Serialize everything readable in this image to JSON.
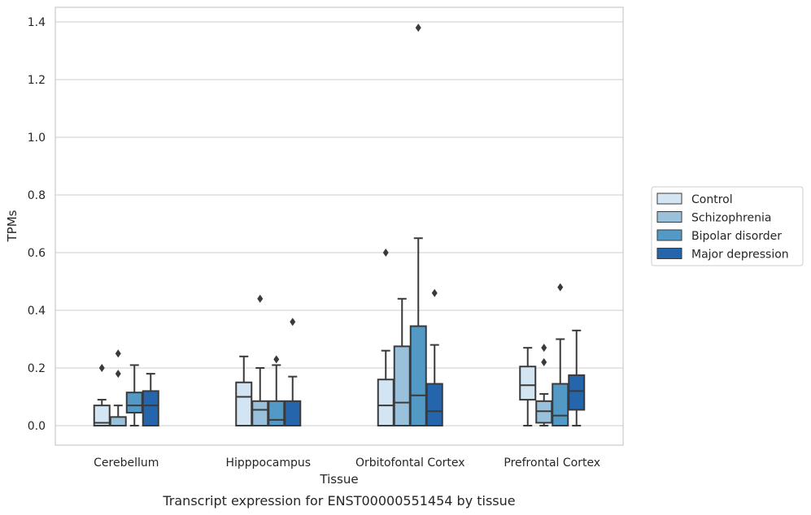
{
  "chart_data": {
    "type": "box",
    "title": "",
    "caption": "Transcript expression for ENST00000551454 by tissue",
    "xlabel": "Tissue",
    "ylabel": "TPMs",
    "ylim": [
      -0.065,
      1.45
    ],
    "yticks": [
      0.0,
      0.2,
      0.4,
      0.6,
      0.8,
      1.0,
      1.2,
      1.4
    ],
    "ytick_labels": [
      "0.0",
      "0.2",
      "0.4",
      "0.6",
      "0.8",
      "1.0",
      "1.2",
      "1.4"
    ],
    "grid": "horizontal",
    "legend_position": "right",
    "categories": [
      "Cerebellum",
      "Hipppocampus",
      "Orbitofontal Cortex",
      "Prefrontal Cortex"
    ],
    "series": [
      {
        "name": "Control",
        "color": "#d3e4f3",
        "boxes": [
          {
            "whislo": 0.0,
            "q1": 0.0,
            "med": 0.01,
            "q3": 0.07,
            "whishi": 0.09,
            "fliers": [
              0.2
            ]
          },
          {
            "whislo": 0.0,
            "q1": 0.0,
            "med": 0.1,
            "q3": 0.15,
            "whishi": 0.24,
            "fliers": []
          },
          {
            "whislo": 0.0,
            "q1": 0.0,
            "med": 0.07,
            "q3": 0.16,
            "whishi": 0.26,
            "fliers": [
              0.6
            ]
          },
          {
            "whislo": 0.0,
            "q1": 0.09,
            "med": 0.14,
            "q3": 0.205,
            "whishi": 0.27,
            "fliers": []
          }
        ]
      },
      {
        "name": "Schizophrenia",
        "color": "#9ac1db",
        "boxes": [
          {
            "whislo": 0.0,
            "q1": 0.0,
            "med": 0.0,
            "q3": 0.03,
            "whishi": 0.07,
            "fliers": [
              0.18,
              0.25
            ]
          },
          {
            "whislo": 0.0,
            "q1": 0.0,
            "med": 0.055,
            "q3": 0.085,
            "whishi": 0.2,
            "fliers": [
              0.44
            ]
          },
          {
            "whislo": 0.0,
            "q1": 0.0,
            "med": 0.08,
            "q3": 0.275,
            "whishi": 0.44,
            "fliers": []
          },
          {
            "whislo": 0.0,
            "q1": 0.01,
            "med": 0.05,
            "q3": 0.085,
            "whishi": 0.11,
            "fliers": [
              0.22,
              0.27
            ]
          }
        ]
      },
      {
        "name": "Bipolar disorder",
        "color": "#5399c6",
        "boxes": [
          {
            "whislo": 0.0,
            "q1": 0.045,
            "med": 0.07,
            "q3": 0.115,
            "whishi": 0.21,
            "fliers": []
          },
          {
            "whislo": 0.0,
            "q1": 0.0,
            "med": 0.02,
            "q3": 0.085,
            "whishi": 0.21,
            "fliers": [
              0.23
            ]
          },
          {
            "whislo": 0.0,
            "q1": 0.0,
            "med": 0.105,
            "q3": 0.345,
            "whishi": 0.65,
            "fliers": [
              1.38
            ]
          },
          {
            "whislo": 0.0,
            "q1": 0.0,
            "med": 0.035,
            "q3": 0.145,
            "whishi": 0.3,
            "fliers": [
              0.48
            ]
          }
        ]
      },
      {
        "name": "Major depression",
        "color": "#2565ac",
        "boxes": [
          {
            "whislo": 0.0,
            "q1": 0.0,
            "med": 0.07,
            "q3": 0.12,
            "whishi": 0.18,
            "fliers": []
          },
          {
            "whislo": 0.0,
            "q1": 0.0,
            "med": 0.0,
            "q3": 0.085,
            "whishi": 0.17,
            "fliers": [
              0.36
            ]
          },
          {
            "whislo": 0.0,
            "q1": 0.0,
            "med": 0.05,
            "q3": 0.145,
            "whishi": 0.28,
            "fliers": [
              0.46
            ]
          },
          {
            "whislo": 0.0,
            "q1": 0.055,
            "med": 0.12,
            "q3": 0.175,
            "whishi": 0.33,
            "fliers": []
          }
        ]
      }
    ]
  }
}
